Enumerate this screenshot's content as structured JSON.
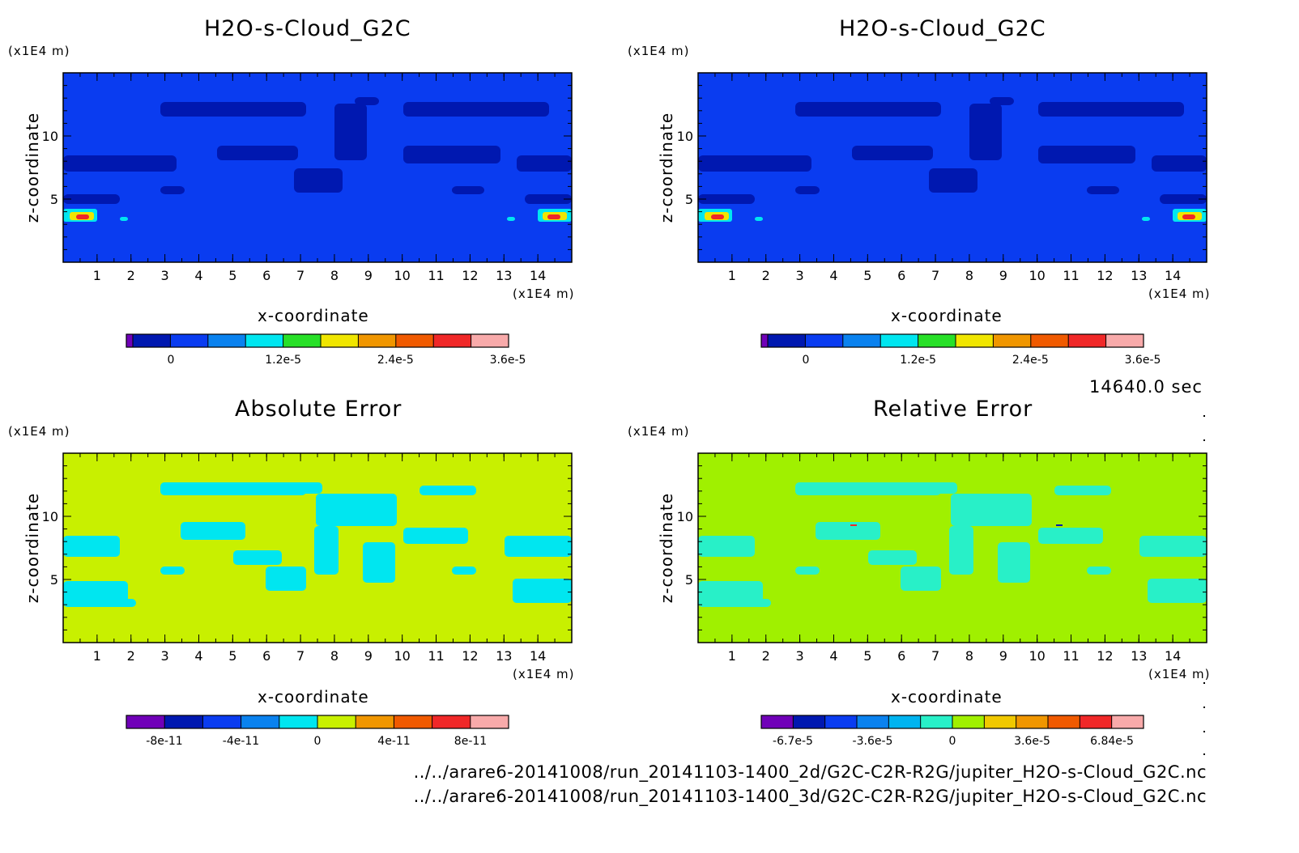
{
  "figure": {
    "time_label": "14640.0 sec",
    "file_paths": [
      "../../arare6-20141008/run_20141103-1400_2d/G2C-C2R-R2G/jupiter_H2O-s-Cloud_G2C.nc",
      "../../arare6-20141008/run_20141103-1400_3d/G2C-C2R-R2G/jupiter_H2O-s-Cloud_G2C.nc"
    ]
  },
  "chart_data": [
    {
      "type": "heatmap",
      "title": "H2O-s-Cloud_G2C",
      "xlabel": "x-coordinate",
      "ylabel": "z-coordinate",
      "x_unit": "(x1E4 m)",
      "y_unit": "(x1E4 m)",
      "xlim": [
        0,
        15
      ],
      "ylim": [
        0,
        15
      ],
      "x_ticks": [
        "1",
        "2",
        "3",
        "4",
        "5",
        "6",
        "7",
        "8",
        "9",
        "10",
        "11",
        "12",
        "13",
        "14"
      ],
      "y_ticks": [
        "5",
        "10"
      ],
      "background_color": "#0a3cf0",
      "colorbar": {
        "colors": [
          "#7000b8",
          "#0018b0",
          "#0a3cf0",
          "#0a82ef",
          "#00e6f0",
          "#28e028",
          "#f0e600",
          "#f09600",
          "#f05a00",
          "#f02828",
          "#f8aaaa"
        ],
        "labels": [
          "0",
          "1.2e-5",
          "2.4e-5",
          "3.6e-5"
        ]
      }
    },
    {
      "type": "heatmap",
      "title": "H2O-s-Cloud_G2C",
      "xlabel": "x-coordinate",
      "ylabel": "z-coordinate",
      "x_unit": "(x1E4 m)",
      "y_unit": "(x1E4 m)",
      "xlim": [
        0,
        15
      ],
      "ylim": [
        0,
        15
      ],
      "x_ticks": [
        "1",
        "2",
        "3",
        "4",
        "5",
        "6",
        "7",
        "8",
        "9",
        "10",
        "11",
        "12",
        "13",
        "14"
      ],
      "y_ticks": [
        "5",
        "10"
      ],
      "background_color": "#0a3cf0",
      "colorbar": {
        "colors": [
          "#7000b8",
          "#0018b0",
          "#0a3cf0",
          "#0a82ef",
          "#00e6f0",
          "#28e028",
          "#f0e600",
          "#f09600",
          "#f05a00",
          "#f02828",
          "#f8aaaa"
        ],
        "labels": [
          "0",
          "1.2e-5",
          "2.4e-5",
          "3.6e-5"
        ]
      }
    },
    {
      "type": "heatmap",
      "title": "Absolute Error",
      "xlabel": "x-coordinate",
      "ylabel": "z-coordinate",
      "x_unit": "(x1E4 m)",
      "y_unit": "(x1E4 m)",
      "xlim": [
        0,
        15
      ],
      "ylim": [
        0,
        15
      ],
      "x_ticks": [
        "1",
        "2",
        "3",
        "4",
        "5",
        "6",
        "7",
        "8",
        "9",
        "10",
        "11",
        "12",
        "13",
        "14"
      ],
      "y_ticks": [
        "5",
        "10"
      ],
      "background_color": "#c8f000",
      "colorbar": {
        "colors": [
          "#7000b8",
          "#0018b0",
          "#0a3cf0",
          "#0a82ef",
          "#00e6f0",
          "#c8f000",
          "#f09600",
          "#f05a00",
          "#f02828",
          "#f8aaaa"
        ],
        "labels": [
          "-8e-11",
          "-4e-11",
          "0",
          "4e-11",
          "8e-11"
        ]
      }
    },
    {
      "type": "heatmap",
      "title": "Relative Error",
      "xlabel": "x-coordinate",
      "ylabel": "z-coordinate",
      "x_unit": "(x1E4 m)",
      "y_unit": "(x1E4 m)",
      "xlim": [
        0,
        15
      ],
      "ylim": [
        0,
        15
      ],
      "x_ticks": [
        "1",
        "2",
        "3",
        "4",
        "5",
        "6",
        "7",
        "8",
        "9",
        "10",
        "11",
        "12",
        "13",
        "14"
      ],
      "y_ticks": [
        "5",
        "10"
      ],
      "background_color": "#a0f000",
      "colorbar": {
        "colors": [
          "#7000b8",
          "#0018b0",
          "#0a3cf0",
          "#0a82ef",
          "#00b4f0",
          "#28f0c8",
          "#a0f000",
          "#f0c800",
          "#f09600",
          "#f05a00",
          "#f02828",
          "#f8aaaa"
        ],
        "labels": [
          "-6.7e-5",
          "-3.6e-5",
          "0",
          "3.6e-5",
          "6.84e-5"
        ]
      }
    }
  ]
}
